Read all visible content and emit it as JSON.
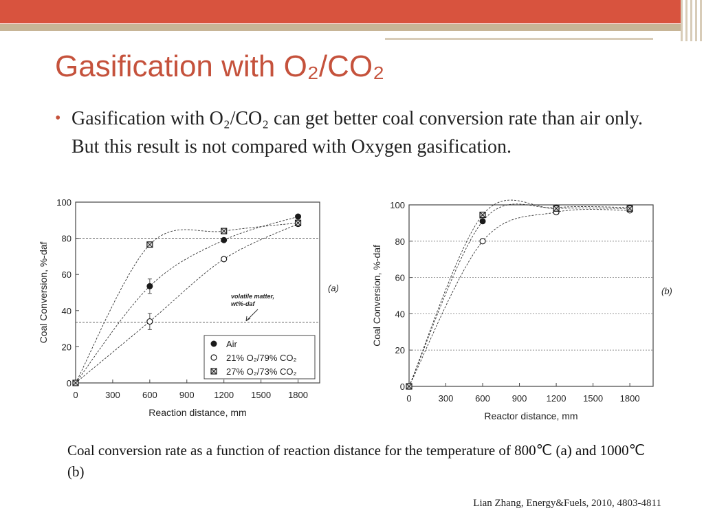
{
  "slide": {
    "title": "Gasification with O₂/CO₂",
    "bullet": "Gasification with O₂/CO₂ can get better coal conversion rate than air only. But this result is not compared with Oxygen gasification.",
    "caption": "Coal conversion rate as a function of reaction distance for the temperature of 800℃ (a) and 1000℃ (b)",
    "source": "Lian Zhang, Energy&Fuels, 2010, 4803-4811"
  },
  "chart_data": [
    {
      "type": "scatter",
      "panel_label": "(a)",
      "x_label": "Reaction distance, mm",
      "y_label": "Coal Conversion, %-daf",
      "xlim": [
        0,
        1975
      ],
      "ylim": [
        0,
        100
      ],
      "xticks": [
        0,
        300,
        600,
        900,
        1200,
        1500,
        1800
      ],
      "yticks": [
        0,
        20,
        40,
        60,
        80,
        100
      ],
      "hlines": [
        80,
        33.5
      ],
      "annotation": [
        "volatile matter,",
        "wt%-daf"
      ],
      "legend": "lower right",
      "fit_lines": "dashed",
      "series": [
        {
          "name": "Air",
          "marker": "filled",
          "color": "#1a1a1a",
          "x": [
            0,
            600,
            1200,
            1800
          ],
          "values": [
            0,
            53.5,
            79,
            92
          ],
          "errors": [
            null,
            4,
            null,
            null
          ]
        },
        {
          "name": "21% O₂/79% CO₂",
          "marker": "open",
          "color": "#1a1a1a",
          "x": [
            0,
            600,
            1200,
            1800
          ],
          "values": [
            0,
            34,
            68.5,
            88
          ],
          "errors": [
            null,
            4.5,
            null,
            null
          ]
        },
        {
          "name": "27% O₂/73% CO₂",
          "marker": "crossed",
          "color": "#1a1a1a",
          "x": [
            0,
            600,
            1200,
            1800
          ],
          "values": [
            0,
            76.5,
            84,
            88.5
          ],
          "errors": [
            null,
            null,
            null,
            null
          ]
        }
      ]
    },
    {
      "type": "scatter",
      "panel_label": "(b)",
      "x_label": "Reactor distance, mm",
      "y_label": "Coal Conversion, %-daf",
      "xlim": [
        0,
        1990
      ],
      "ylim": [
        0,
        100
      ],
      "xticks": [
        0,
        300,
        600,
        900,
        1200,
        1500,
        1800
      ],
      "yticks": [
        0,
        20,
        40,
        60,
        80,
        100
      ],
      "grid": true,
      "fit_lines": "dashed",
      "series": [
        {
          "marker": "filled",
          "color": "#1a1a1a",
          "x": [
            0,
            600,
            1200,
            1800
          ],
          "values": [
            0,
            91,
            98.5,
            98.5
          ]
        },
        {
          "marker": "open",
          "color": "#1a1a1a",
          "x": [
            0,
            600,
            1200,
            1800
          ],
          "values": [
            0,
            80,
            96,
            97
          ]
        },
        {
          "marker": "crossed",
          "color": "#1a1a1a",
          "x": [
            0,
            600,
            1200,
            1800
          ],
          "values": [
            0,
            94.5,
            98,
            98
          ]
        }
      ]
    }
  ]
}
